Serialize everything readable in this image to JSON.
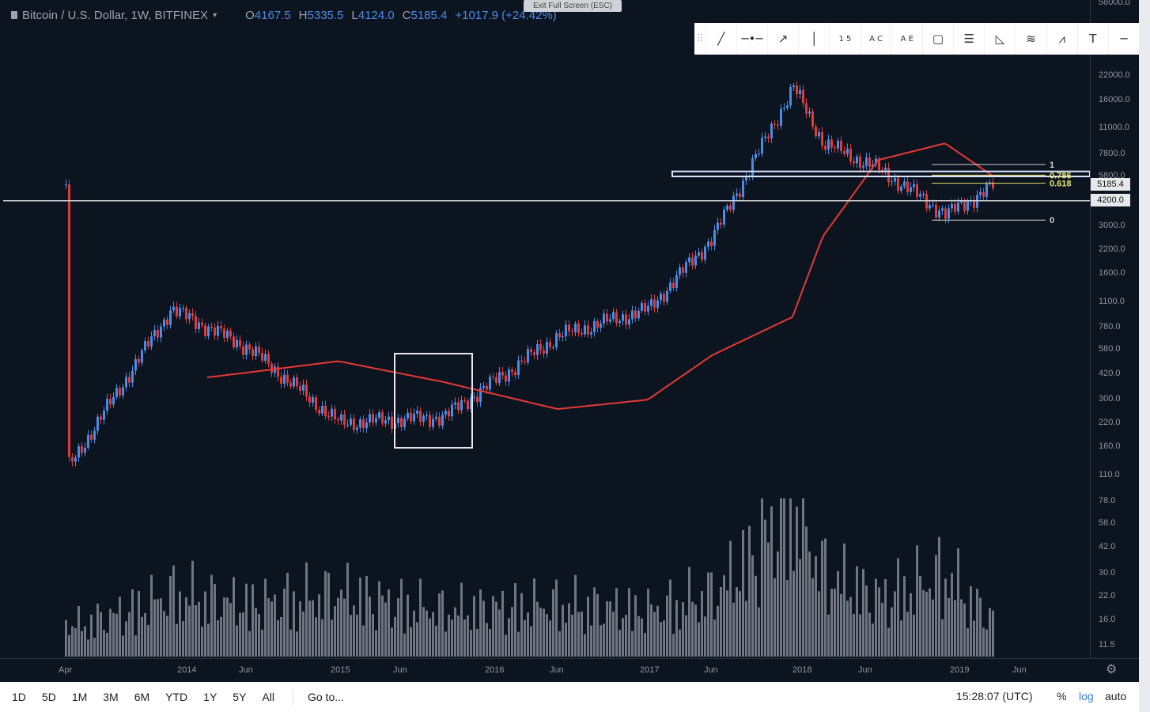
{
  "header": {
    "symbol": "Bitcoin / U.S. Dollar, 1W, BITFINEX",
    "ohlc": [
      {
        "k": "O",
        "v": "4167.5"
      },
      {
        "k": "H",
        "v": "5335.5"
      },
      {
        "k": "L",
        "v": "4124.0"
      },
      {
        "k": "C",
        "v": "5185.4"
      }
    ],
    "change": "+1017.9 (+24.42%)"
  },
  "exit_fullscreen": "Exit Full Screen (ESC)",
  "drawing_tools": [
    "trend-line-icon",
    "horizontal-ray-icon",
    "arrow-line-icon",
    "vertical-line-icon",
    "abcd-pattern-icon",
    "xabcd-pattern-icon",
    "elliott-wave-icon",
    "rectangle-icon",
    "parallel-channel-icon",
    "fib-fan-icon",
    "fib-channel-icon",
    "pitchfork-icon",
    "text-icon",
    "horizontal-line-icon"
  ],
  "drawing_tool_glyphs": [
    "1 5",
    "A C",
    "A E"
  ],
  "price_axis": {
    "ticks": [
      "58000.0",
      "22000.0",
      "16000.0",
      "11000.0",
      "7800.0",
      "5800.0",
      "3000.0",
      "2200.0",
      "1600.0",
      "1100.0",
      "780.0",
      "580.0",
      "420.0",
      "300.0",
      "220.0",
      "160.0",
      "110.0",
      "78.0",
      "58.0",
      "42.0",
      "30.0",
      "22.0",
      "16.0",
      "11.5"
    ],
    "current_price_label": "5185.4",
    "horizontal_level_label": "4200.0"
  },
  "fib_labels": [
    "1",
    "0.786",
    "0.618",
    "0"
  ],
  "time_axis": [
    "Apr",
    "2014",
    "Jun",
    "2015",
    "Jun",
    "2016",
    "Jun",
    "2017",
    "Jun",
    "2018",
    "Jun",
    "2019",
    "Jun"
  ],
  "bottom_bar": {
    "ranges": [
      "1D",
      "5D",
      "1M",
      "3M",
      "6M",
      "YTD",
      "1Y",
      "5Y",
      "All"
    ],
    "goto": "Go to...",
    "time": "15:28:07 (UTC)",
    "percent": "%",
    "log": "log",
    "auto": "auto"
  },
  "chart_data": {
    "type": "candlestick",
    "scale": "log",
    "ylim": [
      11.5,
      58000
    ],
    "x": [
      "2013-04",
      "2013-12",
      "2014-06",
      "2015-01",
      "2015-08",
      "2016-06",
      "2017-01",
      "2017-06",
      "2017-12",
      "2018-02",
      "2018-06",
      "2018-11",
      "2019-03"
    ],
    "close": [
      120,
      1000,
      600,
      220,
      240,
      700,
      1000,
      2600,
      19000,
      9000,
      6400,
      3500,
      5185
    ],
    "volume": [
      14,
      30,
      25,
      30,
      22,
      25,
      22,
      30,
      80,
      40,
      28,
      40,
      18
    ],
    "moving_average": [
      300,
      380,
      430,
      500,
      380,
      265,
      300,
      540,
      900,
      2600,
      7200,
      9000,
      5800
    ],
    "horizontal_level": 4200,
    "fib_levels": {
      "1": 6800,
      "0.786": 5900,
      "0.618": 5300,
      "0": 3250
    },
    "zone_band": [
      5800,
      6200
    ],
    "colors": {
      "up": "#4c8be6",
      "down": "#e03b3b",
      "ma": "#e53935",
      "volume": "#6f7680",
      "fib": "#e8e26a",
      "level": "#cfd2d6",
      "zone": "#4c8be6"
    }
  }
}
